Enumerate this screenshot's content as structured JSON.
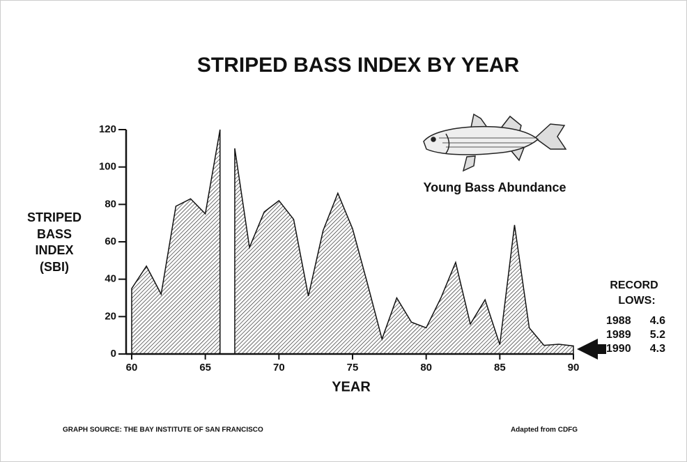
{
  "chart_data": {
    "type": "area",
    "title": "STRIPED BASS INDEX BY YEAR",
    "ylabel": [
      "STRIPED",
      "BASS",
      "INDEX",
      "(SBI)"
    ],
    "xlabel": "YEAR",
    "annotation": "Young Bass Abundance",
    "series": [
      {
        "color": "#111111",
        "x": [
          60,
          61,
          62,
          63,
          64,
          65,
          66
        ],
        "values": [
          35,
          47,
          32,
          79,
          83,
          75,
          120
        ]
      },
      {
        "color": "#111111",
        "x": [
          67,
          68,
          69,
          70,
          71,
          72,
          73,
          74,
          75,
          76,
          77,
          78,
          79,
          80,
          81,
          82,
          83,
          84,
          85,
          86,
          87,
          88,
          89,
          90
        ],
        "values": [
          110,
          57,
          76,
          82,
          72,
          31,
          66,
          86,
          67,
          38,
          8,
          30,
          17,
          14,
          30,
          49,
          16,
          29,
          5,
          69,
          14,
          4.6,
          5.2,
          4.3
        ]
      }
    ],
    "xlim": [
      60,
      90
    ],
    "xticks": [
      60,
      65,
      70,
      75,
      80,
      85,
      90
    ],
    "ylim": [
      0,
      120
    ],
    "yticks": [
      0,
      20,
      40,
      60,
      80,
      100,
      120
    ],
    "record_lows": {
      "title": [
        "RECORD",
        "LOWS:"
      ],
      "rows": [
        [
          "1988",
          "4.6"
        ],
        [
          "1989",
          "5.2"
        ],
        [
          "1990",
          "4.3"
        ]
      ]
    },
    "source": "GRAPH SOURCE:  THE BAY  INSTITUTE OF SAN FRANCISCO",
    "credit": "Adapted from CDFG"
  }
}
